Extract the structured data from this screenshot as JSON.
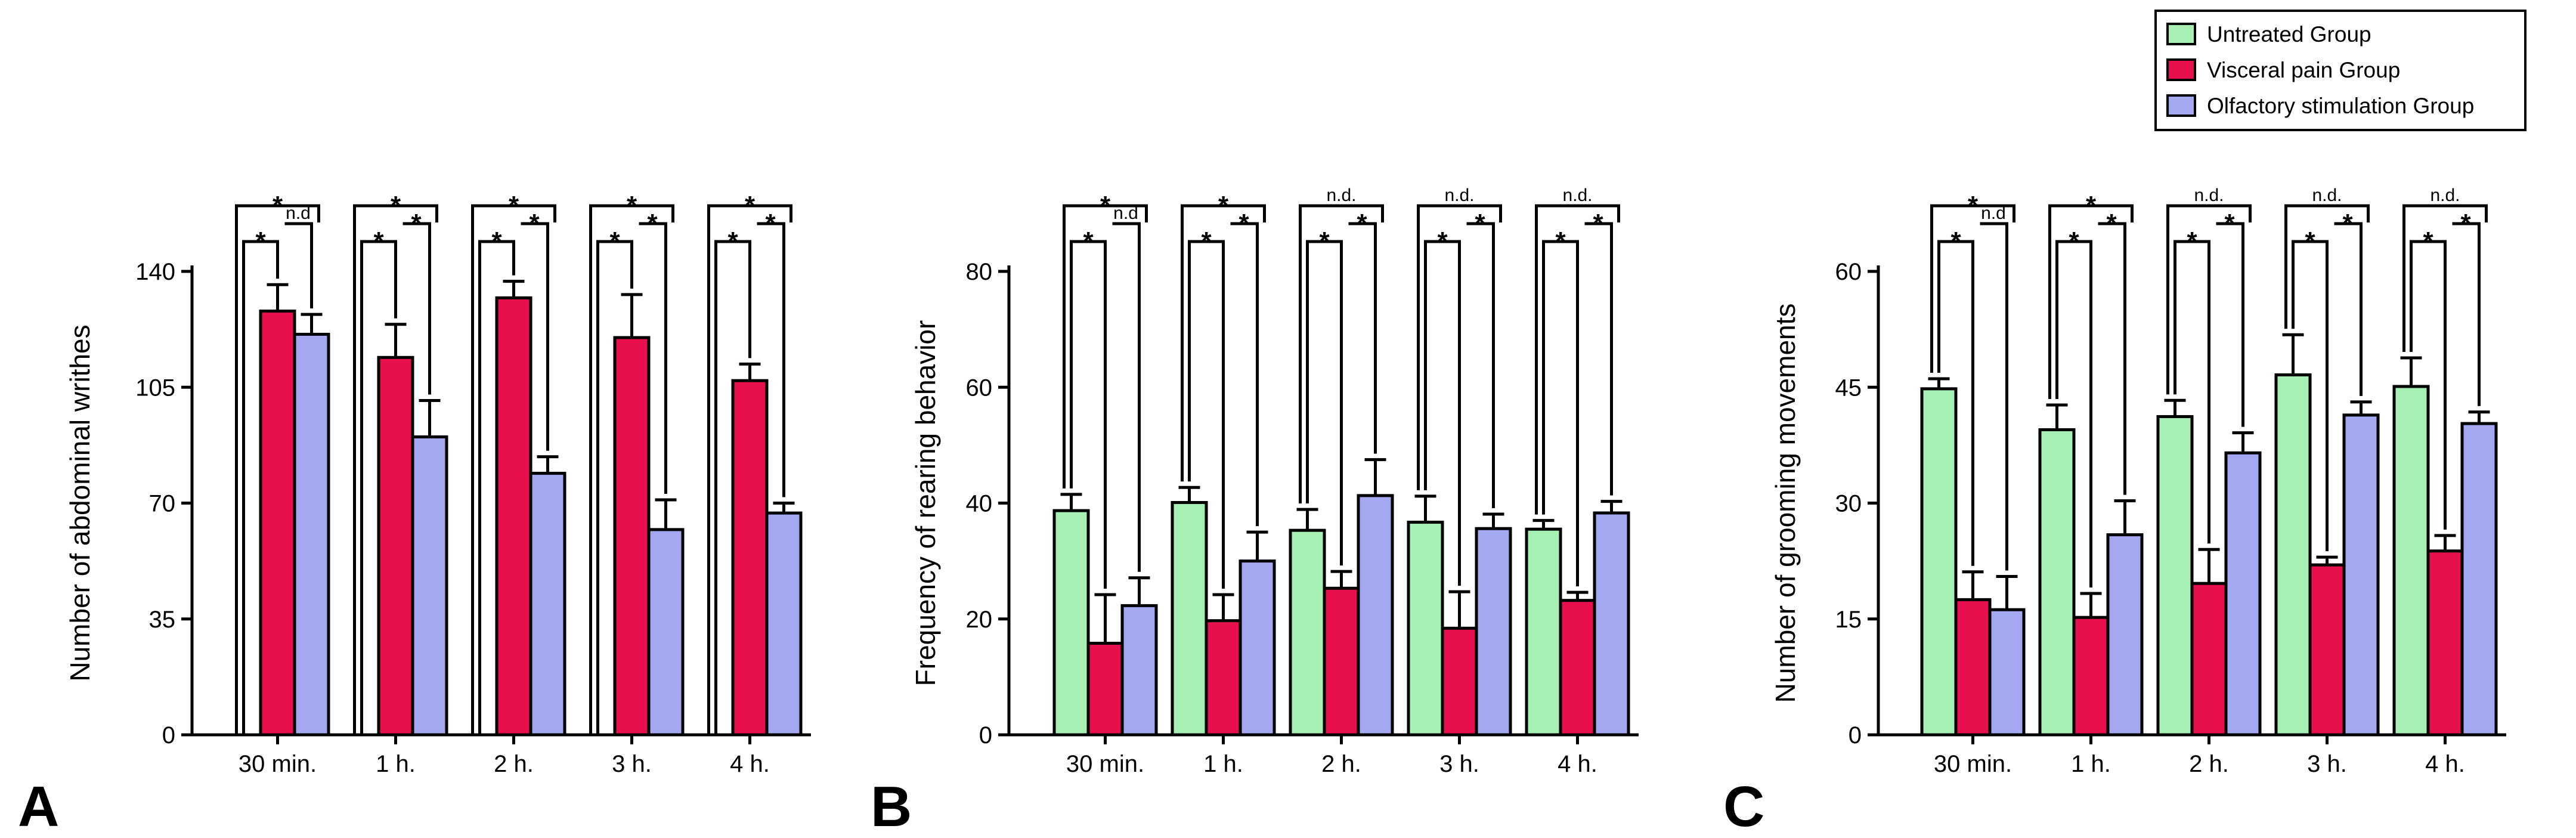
{
  "legend": [
    {
      "name": "Untreated Group",
      "color": "#a6f0b4"
    },
    {
      "name": "Visceral pain Group",
      "color": "#e8104c"
    },
    {
      "name": "Olfactory stimulation Group",
      "color": "#a3a8f1"
    }
  ],
  "chart_data": [
    {
      "panel": "A",
      "type": "bar",
      "ylabel": "Number of abdominal writhes",
      "ylim": [
        0,
        140
      ],
      "yticks": [
        0,
        35,
        70,
        105,
        140
      ],
      "categories": [
        "30 min.",
        "1 h.",
        "2 h.",
        "3 h.",
        "4 h."
      ],
      "series": [
        {
          "name": "Untreated Group",
          "values": [
            0,
            0,
            0,
            0,
            0
          ],
          "errors": [
            0,
            0,
            0,
            0,
            0
          ]
        },
        {
          "name": "Visceral pain Group",
          "values": [
            128,
            114,
            132,
            120,
            107
          ],
          "errors": [
            8,
            10,
            5,
            13,
            5
          ]
        },
        {
          "name": "Olfactory stimulation Group",
          "values": [
            121,
            90,
            79,
            62,
            67
          ],
          "errors": [
            6,
            11,
            5,
            9,
            3
          ]
        }
      ],
      "significance": [
        {
          "outer": "*",
          "left": "*",
          "right": "n.d"
        },
        {
          "outer": "*",
          "left": "*",
          "right": "*"
        },
        {
          "outer": "*",
          "left": "*",
          "right": "*"
        },
        {
          "outer": "*",
          "left": "*",
          "right": "*"
        },
        {
          "outer": "*",
          "left": "*",
          "right": "*"
        }
      ]
    },
    {
      "panel": "B",
      "type": "bar",
      "ylabel": "Frequency of rearing behavior",
      "ylim": [
        0,
        80
      ],
      "yticks": [
        0,
        20,
        40,
        60,
        80
      ],
      "categories": [
        "30 min.",
        "1 h.",
        "2 h.",
        "3 h.",
        "4 h."
      ],
      "series": [
        {
          "name": "Untreated Group",
          "values": [
            38.7,
            40.1,
            35.3,
            36.7,
            35.5
          ],
          "errors": [
            2.8,
            2.6,
            3.6,
            4.5,
            1.5
          ]
        },
        {
          "name": "Visceral pain Group",
          "values": [
            15.8,
            19.7,
            25.3,
            18.4,
            23.2
          ],
          "errors": [
            8.4,
            4.5,
            2.9,
            6.3,
            1.4
          ]
        },
        {
          "name": "Olfactory stimulation Group",
          "values": [
            22.3,
            30.0,
            41.3,
            35.6,
            38.3
          ],
          "errors": [
            4.8,
            5.0,
            6.2,
            2.5,
            2.0
          ]
        }
      ],
      "significance": [
        {
          "outer": "*",
          "left": "*",
          "right": "n.d"
        },
        {
          "outer": "*",
          "left": "*",
          "right": "*"
        },
        {
          "outer": "n.d.",
          "left": "*",
          "right": "*"
        },
        {
          "outer": "n.d.",
          "left": "*",
          "right": "*"
        },
        {
          "outer": "n.d.",
          "left": "*",
          "right": "*"
        }
      ]
    },
    {
      "panel": "C",
      "type": "bar",
      "ylabel": "Number of grooming movements",
      "ylim": [
        0,
        60
      ],
      "yticks": [
        0,
        15,
        30,
        45,
        60
      ],
      "categories": [
        "30 min.",
        "1 h.",
        "2 h.",
        "3 h.",
        "4 h."
      ],
      "series": [
        {
          "name": "Untreated Group",
          "values": [
            44.8,
            39.5,
            41.2,
            46.6,
            45.1
          ],
          "errors": [
            1.3,
            3.2,
            2.1,
            5.2,
            3.7
          ]
        },
        {
          "name": "Visceral pain Group",
          "values": [
            17.5,
            15.2,
            19.6,
            22.0,
            23.8
          ],
          "errors": [
            3.6,
            3.1,
            4.4,
            1.0,
            2.0
          ]
        },
        {
          "name": "Olfactory stimulation Group",
          "values": [
            16.2,
            25.9,
            36.5,
            41.4,
            40.3
          ],
          "errors": [
            4.3,
            4.4,
            2.6,
            1.7,
            1.5
          ]
        }
      ],
      "significance": [
        {
          "outer": "*",
          "left": "*",
          "right": "n.d"
        },
        {
          "outer": "*",
          "left": "*",
          "right": "*"
        },
        {
          "outer": "n.d.",
          "left": "*",
          "right": "*"
        },
        {
          "outer": "n.d.",
          "left": "*",
          "right": "*"
        },
        {
          "outer": "n.d.",
          "left": "*",
          "right": "*"
        }
      ]
    }
  ]
}
